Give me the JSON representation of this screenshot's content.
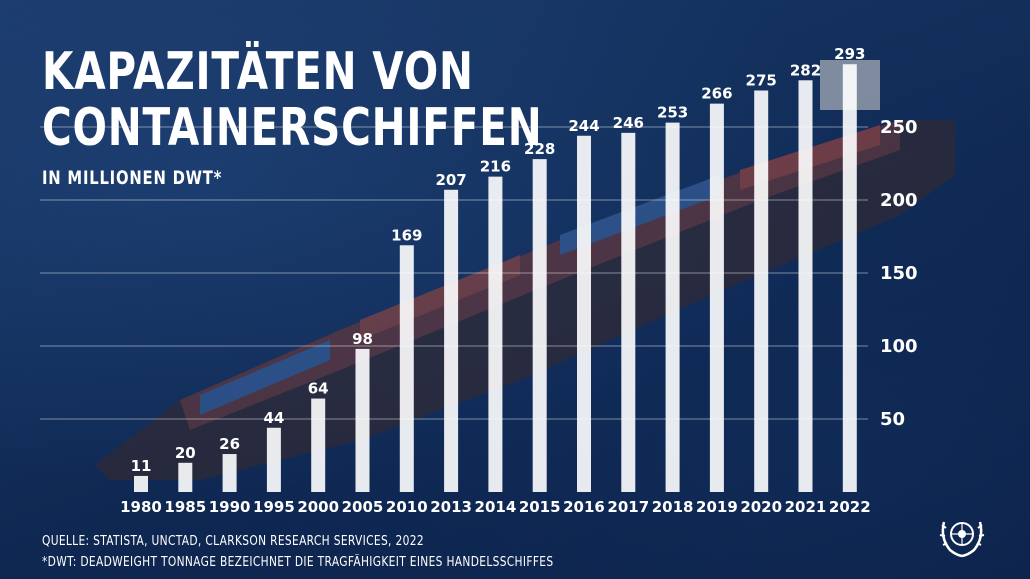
{
  "title_line1": "KAPAZITÄTEN VON",
  "title_line2": "CONTAINERSCHIFFEN",
  "subtitle": "IN MILLIONEN DWT*",
  "source": "QUELLE: STATISTA, UNCTAD, CLARKSON RESEARCH SERVICES, 2022",
  "footnote": "*DWT: DEADWEIGHT TONNAGE BEZEICHNET DIE TRAGFÄHIGKEIT EINES HANDELSSCHIFFES",
  "logo_icon": "un-emblem-icon",
  "colors": {
    "bar": "#ffffff",
    "text": "#ffffff",
    "grid": "#ffffff",
    "background": "#13305c"
  },
  "chart_data": {
    "type": "bar",
    "categories": [
      "1980",
      "1985",
      "1990",
      "1995",
      "2000",
      "2005",
      "2010",
      "2013",
      "2014",
      "2015",
      "2016",
      "2017",
      "2018",
      "2019",
      "2020",
      "2021",
      "2022"
    ],
    "values": [
      11,
      20,
      26,
      44,
      64,
      98,
      169,
      207,
      216,
      228,
      244,
      246,
      253,
      266,
      275,
      282,
      293
    ],
    "y_ticks": [
      50,
      100,
      150,
      200,
      250
    ],
    "ylim": [
      0,
      300
    ],
    "grid": true,
    "data_labels": true
  }
}
